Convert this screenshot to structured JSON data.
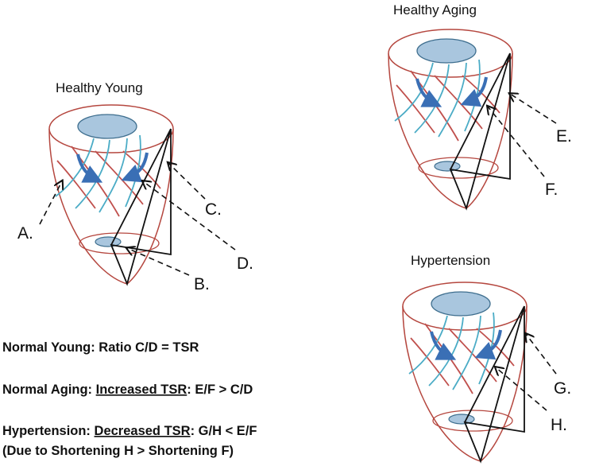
{
  "panels": [
    {
      "title": "Healthy Young",
      "labels": [
        "A.",
        "B.",
        "C.",
        "D."
      ]
    },
    {
      "title": "Healthy Aging",
      "labels": [
        "E.",
        "F."
      ]
    },
    {
      "title": "Hypertension",
      "labels": [
        "G.",
        "H."
      ]
    }
  ],
  "notes": [
    [
      "Normal Young: Ratio C/D = TSR"
    ],
    [
      "Normal Aging: ",
      "Increased TSR",
      ": E/F > C/D"
    ],
    [
      "Hypertension: ",
      "Decreased TSR",
      ": G/H < E/F"
    ],
    [
      "(Due to Shortening H > Shortening F)"
    ]
  ]
}
